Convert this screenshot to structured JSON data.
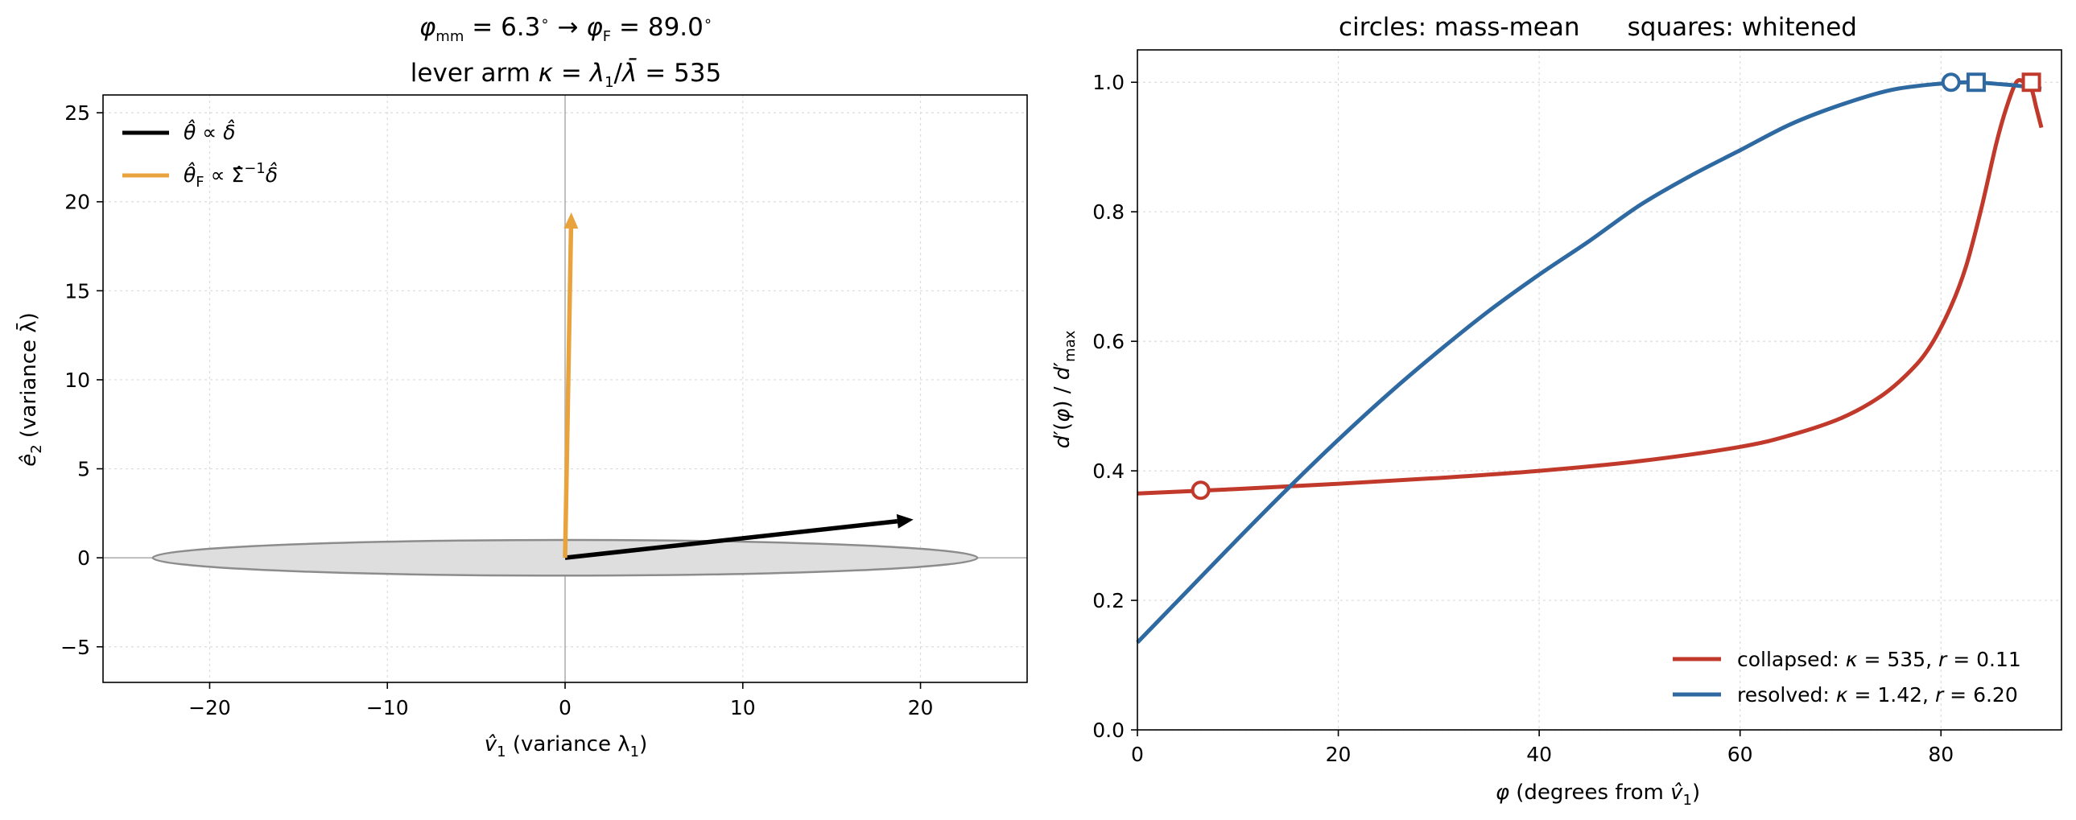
{
  "chart_data": [
    {
      "type": "vector",
      "title_line1": {
        "phi_mm": "6.3",
        "phi_F": "89.0"
      },
      "title_line2": {
        "prefix": "lever arm ",
        "kappa": "535"
      },
      "xlabel": {
        "sym": "v̂",
        "sub": "1",
        "mid": "  (variance λ",
        "sub2": "1",
        "end": ")"
      },
      "ylabel": {
        "sym": "ê",
        "sub": "2",
        "text": "  (variance λ̄)"
      },
      "xlim": [
        -26,
        26
      ],
      "ylim": [
        -7,
        26
      ],
      "xticks": [
        -20,
        -10,
        0,
        10,
        20
      ],
      "yticks": [
        -5,
        0,
        5,
        10,
        15,
        20,
        25
      ],
      "grid": true,
      "ellipse": {
        "cx": 0,
        "cy": 0,
        "rx": 23.2,
        "ry": 1.0,
        "fill": "#dedede",
        "stroke": "#8c8c8c"
      },
      "arrows": [
        {
          "name": "theta",
          "from": [
            0,
            0
          ],
          "to": [
            19.6,
            2.15
          ],
          "color": "#000000"
        },
        {
          "name": "thetaF",
          "from": [
            0,
            0
          ],
          "to": [
            0.35,
            19.4
          ],
          "color": "#e8a33d"
        }
      ],
      "legend_position": "top-left",
      "legend": [
        {
          "label_math": "θ̂ ∝ δ̂",
          "color": "#000000"
        },
        {
          "label_math": "θ̂F ∝ Σ̂⁻¹δ̂",
          "color": "#e8a33d"
        }
      ]
    },
    {
      "type": "line",
      "title": "circles: mass-mean      squares: whitened",
      "xlabel": "φ  (degrees from v̂₁)",
      "ylabel": "d′(φ) / d′max",
      "xlim": [
        0,
        92
      ],
      "ylim": [
        0,
        1.05
      ],
      "xticks": [
        0,
        20,
        40,
        60,
        80
      ],
      "yticks": [
        0.0,
        0.2,
        0.4,
        0.6,
        0.8,
        1.0
      ],
      "grid": true,
      "legend_position": "bottom-right",
      "series": [
        {
          "name": "collapsed",
          "kappa": "535",
          "r": "0.11",
          "color": "#c0392b",
          "x": [
            0,
            10,
            20,
            30,
            40,
            50,
            60,
            65,
            70,
            74,
            77,
            79,
            81,
            82.5,
            84,
            85.5,
            86.5,
            87.5,
            88.3,
            89,
            89.5,
            90
          ],
          "y": [
            0.365,
            0.372,
            0.38,
            0.389,
            0.4,
            0.415,
            0.437,
            0.455,
            0.481,
            0.515,
            0.555,
            0.594,
            0.654,
            0.716,
            0.804,
            0.905,
            0.96,
            1.0,
            1.0,
            0.99,
            0.96,
            0.93
          ],
          "mass_mean_point": [
            6.3,
            0.37
          ],
          "whitened_point": [
            89.0,
            1.0
          ]
        },
        {
          "name": "resolved",
          "kappa": "1.42",
          "r": "6.20",
          "color": "#2e6aa1",
          "x": [
            0,
            5,
            10,
            15,
            20,
            25,
            30,
            35,
            40,
            45,
            50,
            55,
            60,
            65,
            70,
            75,
            80,
            83,
            86,
            88,
            90
          ],
          "y": [
            0.135,
            0.215,
            0.295,
            0.373,
            0.448,
            0.519,
            0.585,
            0.647,
            0.703,
            0.755,
            0.81,
            0.855,
            0.895,
            0.935,
            0.965,
            0.988,
            0.998,
            1.0,
            0.997,
            0.994,
            0.99
          ],
          "mass_mean_point": [
            81,
            1.0
          ],
          "whitened_point": [
            83.5,
            1.0
          ]
        }
      ]
    }
  ]
}
